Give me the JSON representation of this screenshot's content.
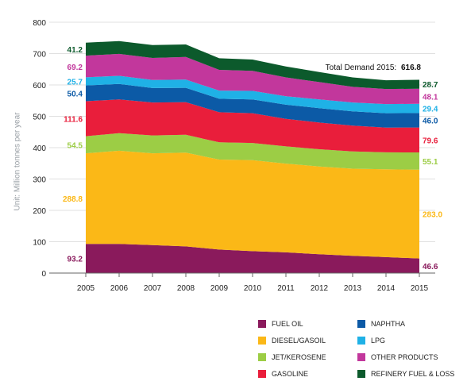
{
  "chart_data": {
    "type": "area",
    "stacked": true,
    "ylabel": "Unit: Million tonnes per year",
    "ylim": [
      0,
      800
    ],
    "yticks": [
      "0",
      "100",
      "200",
      "300",
      "400",
      "500",
      "600",
      "700",
      "800"
    ],
    "x": [
      "2005",
      "2006",
      "2007",
      "2008",
      "2009",
      "2010",
      "2011",
      "2012",
      "2013",
      "2014",
      "2015"
    ],
    "grid": true,
    "legend_position": "bottom-right",
    "total_label": "Total Demand 2015:",
    "total_value": "616.8",
    "series": [
      {
        "name": "FUEL OIL",
        "color": "#8a1a5c",
        "values": [
          93.2,
          93.0,
          89.0,
          85.0,
          75.0,
          70.0,
          66.0,
          60.0,
          55.0,
          51.0,
          46.6
        ],
        "label_start": "93.2",
        "label_end": "46.6"
      },
      {
        "name": "DIESEL/GASOIL",
        "color": "#fbb817",
        "values": [
          288.8,
          297.0,
          293.0,
          299.0,
          287.0,
          290.0,
          283.0,
          280.0,
          278.0,
          280.0,
          283.0
        ],
        "label_start": "288.8",
        "label_end": "283.0"
      },
      {
        "name": "JET/KEROSENE",
        "color": "#9ccd45",
        "values": [
          54.5,
          56.0,
          57.0,
          57.0,
          55.0,
          55.0,
          55.0,
          55.0,
          55.0,
          54.0,
          55.1
        ],
        "label_start": "54.5",
        "label_end": "55.1"
      },
      {
        "name": "GASOLINE",
        "color": "#e91e3b",
        "values": [
          111.6,
          108.0,
          105.0,
          104.0,
          96.0,
          95.0,
          88.0,
          85.0,
          82.0,
          79.0,
          79.6
        ],
        "label_start": "111.6",
        "label_end": "79.6"
      },
      {
        "name": "NAPHTHA",
        "color": "#0c5aa6",
        "values": [
          50.4,
          49.0,
          46.0,
          46.0,
          43.0,
          44.0,
          45.0,
          46.0,
          46.0,
          46.0,
          46.0
        ],
        "label_start": "50.4",
        "label_end": "46.0"
      },
      {
        "name": "LPG",
        "color": "#1fb1e6",
        "values": [
          25.7,
          26.0,
          26.0,
          26.0,
          26.0,
          27.0,
          27.0,
          28.0,
          28.0,
          29.0,
          29.4
        ],
        "label_start": "25.7",
        "label_end": "29.4"
      },
      {
        "name": "OTHER PRODUCTS",
        "color": "#c2379c",
        "values": [
          69.2,
          70.0,
          70.0,
          72.0,
          66.0,
          64.0,
          60.0,
          55.0,
          50.0,
          48.0,
          48.1
        ],
        "label_start": "69.2",
        "label_end": "48.1"
      },
      {
        "name": "REFINERY FUEL & LOSS",
        "color": "#0c5a2c",
        "values": [
          41.2,
          41.0,
          41.0,
          40.0,
          37.0,
          36.0,
          35.0,
          32.0,
          30.0,
          28.0,
          28.7
        ],
        "label_start": "41.2",
        "label_end": "28.7"
      }
    ]
  },
  "legend": {
    "items": [
      {
        "name": "FUEL OIL",
        "color": "#8a1a5c"
      },
      {
        "name": "DIESEL/GASOIL",
        "color": "#fbb817"
      },
      {
        "name": "JET/KEROSENE",
        "color": "#9ccd45"
      },
      {
        "name": "GASOLINE",
        "color": "#e91e3b"
      },
      {
        "name": "NAPHTHA",
        "color": "#0c5aa6"
      },
      {
        "name": "LPG",
        "color": "#1fb1e6"
      },
      {
        "name": "OTHER PRODUCTS",
        "color": "#c2379c"
      },
      {
        "name": "REFINERY FUEL & LOSS",
        "color": "#0c5a2c"
      }
    ]
  }
}
